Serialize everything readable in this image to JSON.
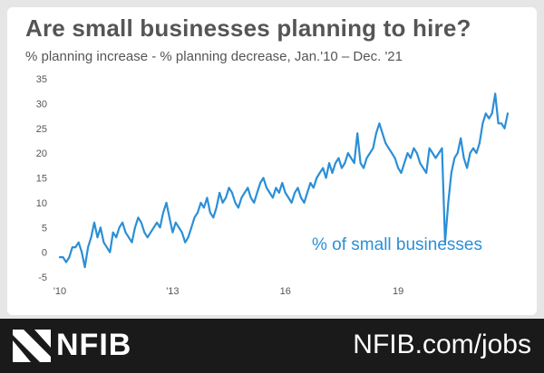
{
  "header": {
    "title": "Are small businesses planning to hire?",
    "subtitle": "% planning increase - % planning decrease, Jan.'10 – Dec. '21"
  },
  "footer": {
    "logo_icon": "nfib-logo-icon",
    "logo_text": "NFIB",
    "site": "NFIB.com/jobs",
    "background": "#1a1a1a"
  },
  "chart_data": {
    "type": "line",
    "title": "",
    "xlabel": "",
    "ylabel": "",
    "ylim": [
      -5,
      35
    ],
    "xlim": [
      "Jan 2010",
      "Dec 2021"
    ],
    "yticks": [
      "35",
      "30",
      "25",
      "20",
      "15",
      "10",
      "5",
      "0",
      "-5"
    ],
    "xticks": [
      "'10",
      "'13",
      "16",
      "19"
    ],
    "grid": false,
    "legend": "none",
    "series_color": "#2b8fd6",
    "annotation": "% of small businesses",
    "series": [
      {
        "name": "% of small businesses",
        "values": [
          -1,
          -1,
          -2,
          -1,
          1,
          1,
          2,
          0,
          -3,
          1,
          3,
          6,
          3,
          5,
          2,
          1,
          0,
          4,
          3,
          5,
          6,
          4,
          3,
          2,
          5,
          7,
          6,
          4,
          3,
          4,
          5,
          6,
          5,
          8,
          10,
          7,
          4,
          6,
          5,
          4,
          2,
          3,
          5,
          7,
          8,
          10,
          9,
          11,
          8,
          7,
          9,
          12,
          10,
          11,
          13,
          12,
          10,
          9,
          11,
          12,
          13,
          11,
          10,
          12,
          14,
          15,
          13,
          12,
          11,
          13,
          12,
          14,
          12,
          11,
          10,
          12,
          13,
          11,
          10,
          12,
          14,
          13,
          15,
          16,
          17,
          15,
          18,
          16,
          18,
          19,
          17,
          18,
          20,
          19,
          18,
          24,
          18,
          17,
          19,
          20,
          21,
          24,
          26,
          24,
          22,
          21,
          20,
          19,
          17,
          16,
          18,
          20,
          19,
          21,
          20,
          18,
          17,
          16,
          21,
          20,
          19,
          20,
          21,
          2,
          10,
          16,
          19,
          20,
          23,
          19,
          17,
          20,
          21,
          20,
          22,
          26,
          28,
          27,
          28,
          32,
          26,
          26,
          25,
          28
        ]
      }
    ]
  }
}
